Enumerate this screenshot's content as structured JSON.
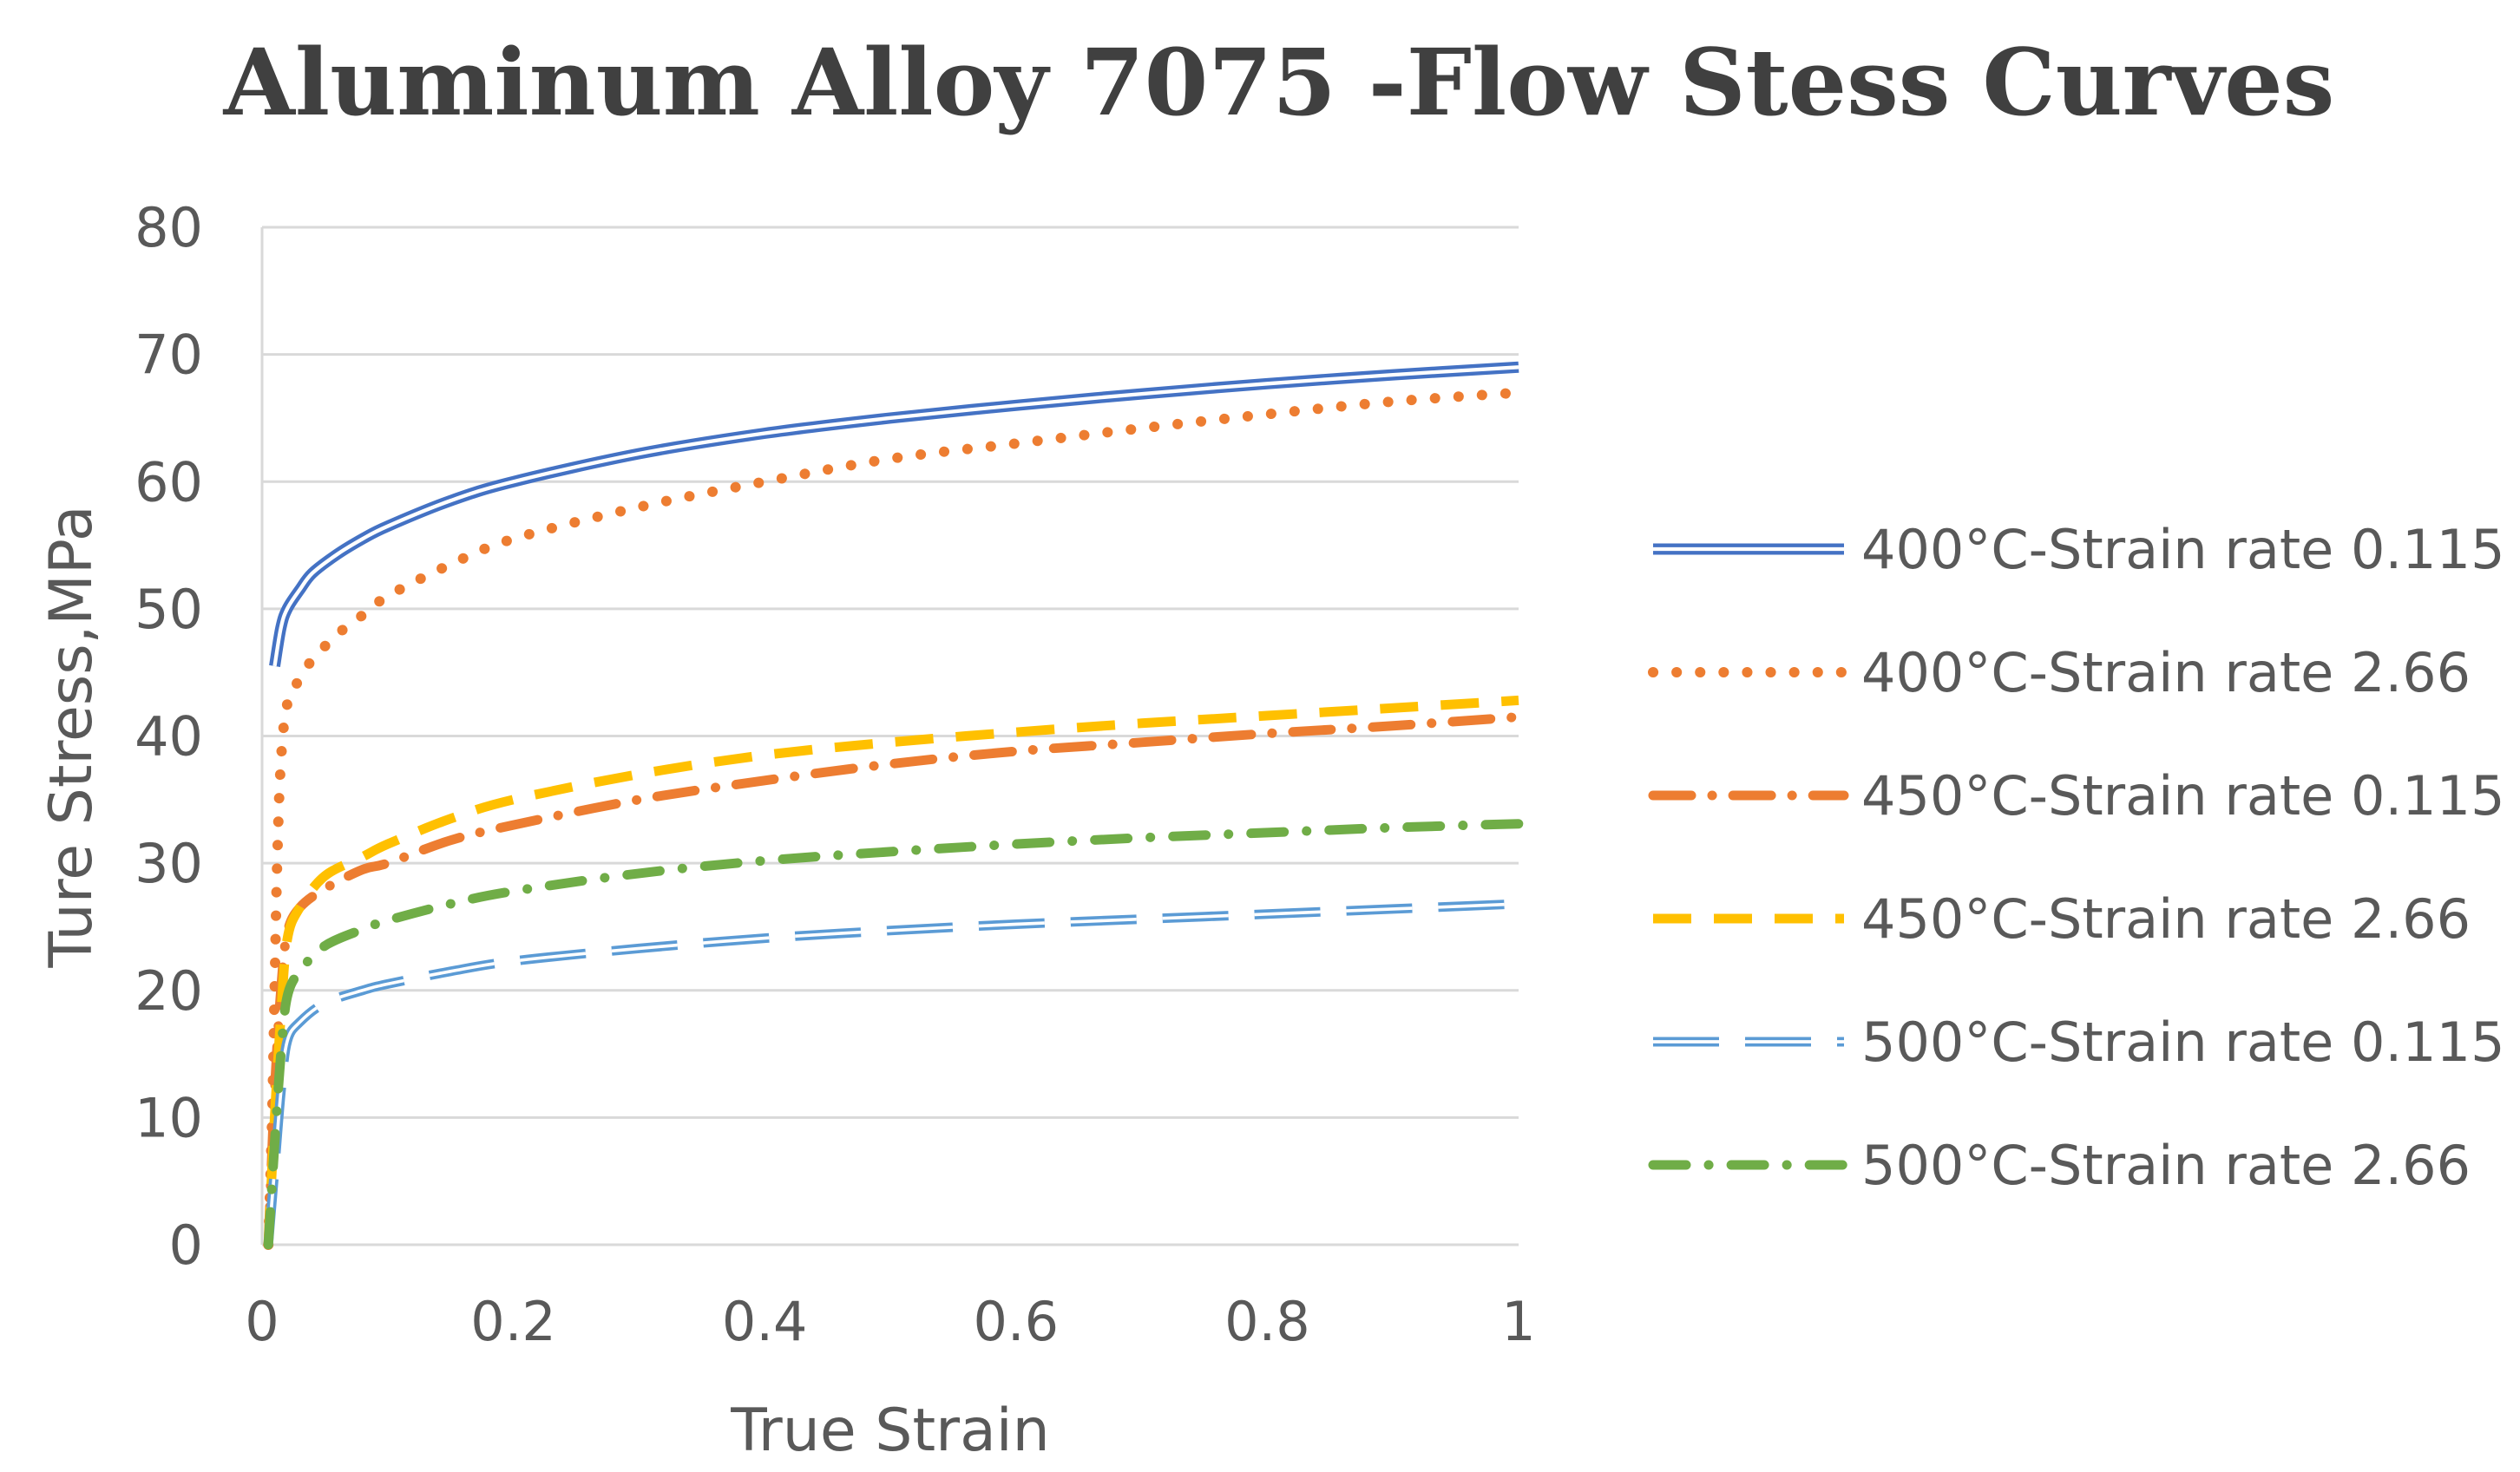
{
  "chart_data": {
    "type": "line",
    "title": "Aluminum Alloy 7075 -Flow Stess Curves",
    "xlabel": "True Strain",
    "ylabel": "Ture Stress,MPa",
    "xlim": [
      0,
      1
    ],
    "ylim": [
      0,
      80
    ],
    "x_ticks": [
      0,
      0.2,
      0.4,
      0.6,
      0.8,
      1
    ],
    "x_tick_labels": [
      "0",
      "0.2",
      "0.4",
      "0.6",
      "0.8",
      "1"
    ],
    "y_ticks": [
      0,
      10,
      20,
      30,
      40,
      50,
      60,
      70,
      80
    ],
    "y_tick_labels": [
      "0",
      "10",
      "20",
      "30",
      "40",
      "50",
      "60",
      "70",
      "80"
    ],
    "grid": true,
    "legend_position": "right",
    "series": [
      {
        "name": "400°C-Strain rate 0.115",
        "color": "#4472C4",
        "style": "double",
        "x": [
          0.01,
          0.015,
          0.02,
          0.03,
          0.04,
          0.06,
          0.08,
          0.1,
          0.15,
          0.2,
          0.3,
          0.4,
          0.5,
          0.6,
          0.7,
          0.8,
          0.9,
          1.0
        ],
        "y": [
          45.5,
          48.5,
          50.0,
          51.5,
          52.8,
          54.3,
          55.5,
          56.5,
          58.5,
          60.0,
          62.2,
          63.8,
          65.0,
          66.0,
          66.9,
          67.7,
          68.4,
          69.0
        ]
      },
      {
        "name": "400°C-Strain rate 2.66",
        "color": "#ED7D31",
        "style": "dotted",
        "x": [
          0.005,
          0.008,
          0.01,
          0.012,
          0.015,
          0.02,
          0.03,
          0.04,
          0.06,
          0.08,
          0.1,
          0.15,
          0.2,
          0.3,
          0.4,
          0.5,
          0.6,
          0.7,
          0.8,
          0.9,
          1.0
        ],
        "y": [
          0,
          10,
          20,
          30,
          38,
          42.5,
          44.5,
          46.0,
          48.0,
          49.5,
          51.0,
          53.5,
          55.5,
          58.0,
          60.0,
          61.8,
          63.0,
          64.2,
          65.3,
          66.3,
          67.0
        ]
      },
      {
        "name": "450°C-Strain rate 0.115",
        "color": "#ED7D31",
        "style": "dash-dot-long",
        "x": [
          0.005,
          0.01,
          0.015,
          0.02,
          0.03,
          0.05,
          0.08,
          0.1,
          0.15,
          0.2,
          0.3,
          0.4,
          0.5,
          0.6,
          0.7,
          0.8,
          0.9,
          1.0
        ],
        "y": [
          0,
          12,
          20,
          24.5,
          26.5,
          28.0,
          29.5,
          30.0,
          31.8,
          33.0,
          35.0,
          36.5,
          37.8,
          38.8,
          39.5,
          40.2,
          40.8,
          41.5
        ]
      },
      {
        "name": "450°C-Strain rate 2.66",
        "color": "#FFC000",
        "style": "dashed",
        "x": [
          0.005,
          0.01,
          0.015,
          0.02,
          0.03,
          0.05,
          0.08,
          0.1,
          0.15,
          0.2,
          0.3,
          0.4,
          0.5,
          0.6,
          0.7,
          0.8,
          0.9,
          1.0
        ],
        "y": [
          0,
          10,
          18,
          24,
          26.5,
          29.0,
          30.5,
          31.5,
          33.5,
          35.0,
          37.0,
          38.5,
          39.5,
          40.3,
          41.0,
          41.6,
          42.2,
          42.8
        ]
      },
      {
        "name": "500°C-Strain rate 0.115",
        "color": "#5B9BD5",
        "style": "long-dash",
        "x": [
          0.005,
          0.01,
          0.015,
          0.02,
          0.03,
          0.05,
          0.08,
          0.1,
          0.15,
          0.2,
          0.3,
          0.4,
          0.5,
          0.6,
          0.7,
          0.8,
          0.9,
          1.0
        ],
        "y": [
          0,
          6,
          12,
          16,
          17.5,
          19.0,
          20.0,
          20.5,
          21.5,
          22.3,
          23.3,
          24.1,
          24.7,
          25.2,
          25.6,
          26.0,
          26.4,
          26.8
        ]
      },
      {
        "name": "500°C-Strain rate 2.66",
        "color": "#70AD47",
        "style": "dash-dot",
        "x": [
          0.005,
          0.01,
          0.015,
          0.02,
          0.03,
          0.05,
          0.08,
          0.1,
          0.15,
          0.2,
          0.3,
          0.4,
          0.5,
          0.6,
          0.7,
          0.8,
          0.9,
          1.0
        ],
        "y": [
          0,
          8,
          15,
          19.5,
          21.5,
          23.5,
          24.8,
          25.5,
          26.8,
          27.8,
          29.2,
          30.2,
          30.9,
          31.5,
          32.0,
          32.4,
          32.8,
          33.1
        ]
      }
    ]
  }
}
